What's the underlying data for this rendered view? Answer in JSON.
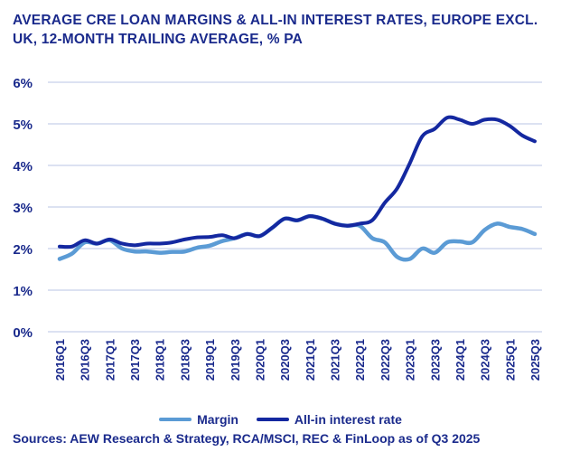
{
  "chart_data": {
    "type": "line",
    "title": "AVERAGE CRE LOAN MARGINS & ALL-IN INTEREST RATES, EUROPE EXCL. UK, 12-MONTH TRAILING AVERAGE, % PA",
    "xlabel": "",
    "ylabel": "",
    "ylim": [
      0,
      6
    ],
    "yticks": [
      "0%",
      "1%",
      "2%",
      "3%",
      "4%",
      "5%",
      "6%"
    ],
    "x": [
      "2016Q1",
      "2016Q2",
      "2016Q3",
      "2016Q4",
      "2017Q1",
      "2017Q2",
      "2017Q3",
      "2017Q4",
      "2018Q1",
      "2018Q2",
      "2018Q3",
      "2018Q4",
      "2019Q1",
      "2019Q2",
      "2019Q3",
      "2019Q4",
      "2020Q1",
      "2020Q2",
      "2020Q3",
      "2020Q4",
      "2021Q1",
      "2021Q2",
      "2021Q3",
      "2021Q4",
      "2022Q1",
      "2022Q2",
      "2022Q3",
      "2022Q4",
      "2023Q1",
      "2023Q2",
      "2023Q3",
      "2023Q4",
      "2024Q1",
      "2024Q2",
      "2024Q3",
      "2024Q4",
      "2025Q1",
      "2025Q2",
      "2025Q3"
    ],
    "xtick_labels": [
      "2016Q1",
      "2016Q3",
      "2017Q1",
      "2017Q3",
      "2018Q1",
      "2018Q3",
      "2019Q1",
      "2019Q3",
      "2020Q1",
      "2020Q3",
      "2021Q1",
      "2021Q3",
      "2022Q1",
      "2022Q3",
      "2023Q1",
      "2023Q3",
      "2024Q1",
      "2024Q3",
      "2025Q1",
      "2025Q3"
    ],
    "grid": true,
    "legend_placement": "bottom",
    "series": [
      {
        "name": "Margin",
        "color": "#5b9bd5",
        "values": [
          1.75,
          1.88,
          2.15,
          2.12,
          2.2,
          2.0,
          1.93,
          1.93,
          1.9,
          1.92,
          1.93,
          2.02,
          2.07,
          2.18,
          2.25,
          2.35,
          2.3,
          2.5,
          2.72,
          2.68,
          2.78,
          2.72,
          2.6,
          2.55,
          2.55,
          2.25,
          2.15,
          1.8,
          1.75,
          2.0,
          1.9,
          2.15,
          2.17,
          2.15,
          2.45,
          2.6,
          2.52,
          2.47,
          2.35
        ]
      },
      {
        "name": "All-in interest rate",
        "color": "#1428a0",
        "values": [
          2.05,
          2.05,
          2.2,
          2.12,
          2.22,
          2.12,
          2.08,
          2.12,
          2.12,
          2.15,
          2.22,
          2.27,
          2.28,
          2.32,
          2.25,
          2.35,
          2.3,
          2.5,
          2.72,
          2.68,
          2.78,
          2.72,
          2.6,
          2.55,
          2.6,
          2.68,
          3.1,
          3.45,
          4.05,
          4.7,
          4.88,
          5.15,
          5.1,
          5.0,
          5.1,
          5.1,
          4.95,
          4.72,
          4.58
        ]
      }
    ],
    "source": "Sources: AEW Research & Strategy, RCA/MSCI, REC & FinLoop as of Q3 2025"
  },
  "colors": {
    "grid": "#d0d8ee",
    "text": "#1a2a8c"
  }
}
